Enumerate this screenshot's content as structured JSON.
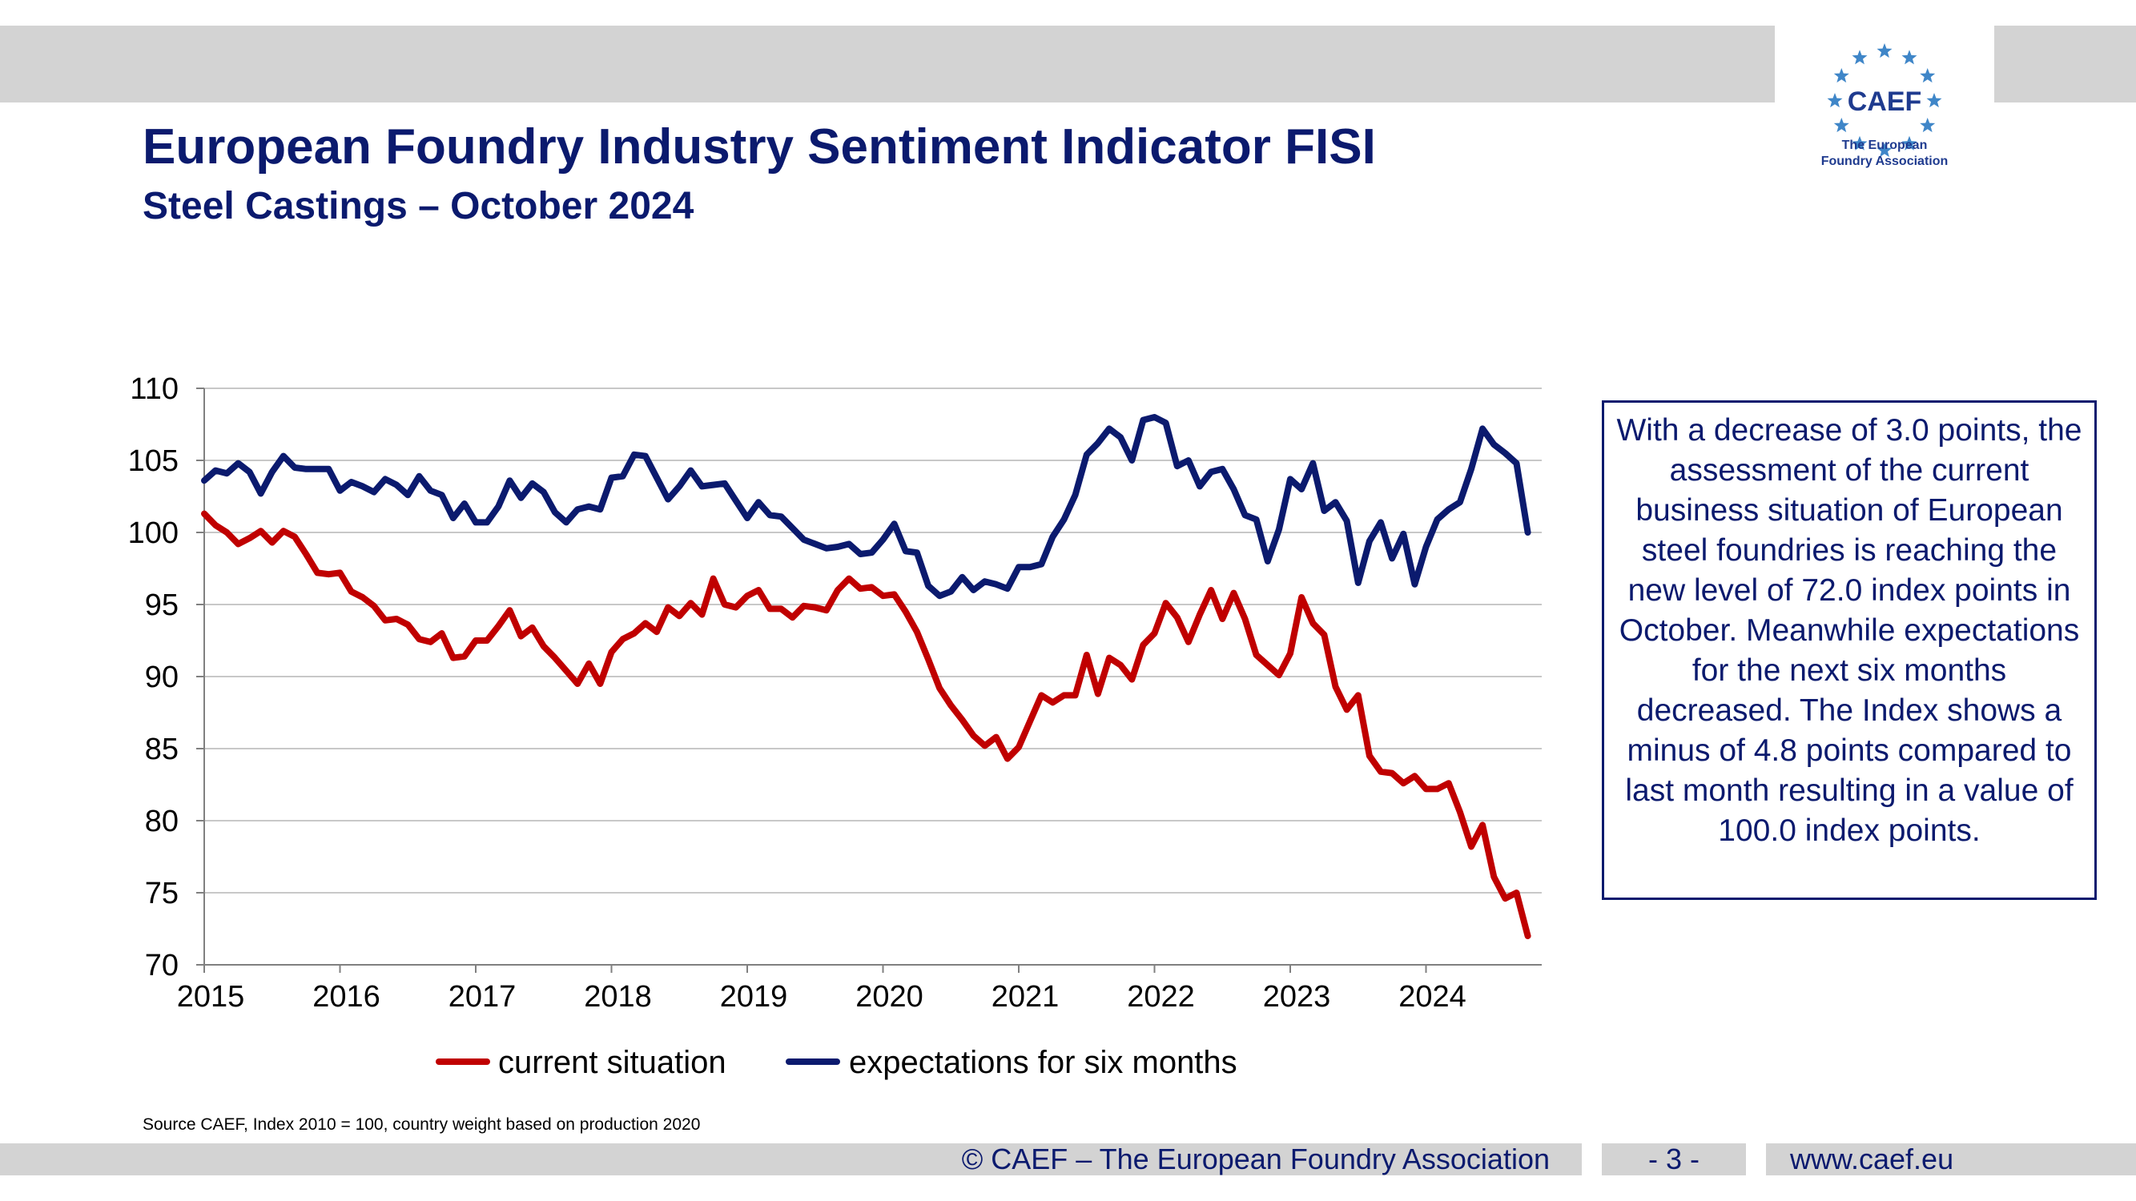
{
  "header": {
    "title": "European Foundry Industry Sentiment Indicator FISI",
    "subtitle": "Steel Castings – October 2024"
  },
  "logo": {
    "text": "CAEF",
    "sub_line1": "The European",
    "sub_line2": "Foundry Association",
    "color": "#1f3b8f",
    "star_color": "#3f86c8"
  },
  "note": "With a decrease of 3.0 points, the assessment of the current business situation of European steel foundries is reaching the new level of 72.0 index points in October. Meanwhile expectations for the next six months decreased. The Index shows a minus of 4.8 points compared to last month resulting in a value of 100.0 index points.",
  "source": "Source CAEF, Index 2010 = 100, country weight based on production 2020",
  "footer": {
    "copyright": "© CAEF – The European Foundry Association",
    "page": "- 3 -",
    "website": "www.caef.eu"
  },
  "chart_data": {
    "type": "line",
    "ylim": [
      70,
      110
    ],
    "yticks": [
      110,
      105,
      100,
      95,
      90,
      85,
      80,
      75,
      70
    ],
    "xticks": [
      "2015",
      "2016",
      "2017",
      "2018",
      "2019",
      "2020",
      "2021",
      "2022",
      "2023",
      "2024"
    ],
    "x_start": "2015-01",
    "x_frequency": "monthly",
    "grid": true,
    "legend_position": "bottom",
    "series": [
      {
        "name": "current situation",
        "color": "#c00000",
        "values": [
          101.3,
          100.5,
          100.0,
          99.2,
          99.6,
          100.1,
          99.3,
          100.1,
          99.7,
          98.5,
          97.2,
          97.1,
          97.2,
          95.9,
          95.5,
          94.9,
          93.9,
          94.0,
          93.6,
          92.6,
          92.4,
          93.0,
          91.3,
          91.4,
          92.5,
          92.5,
          93.5,
          94.6,
          92.8,
          93.4,
          92.1,
          91.3,
          90.4,
          89.5,
          90.9,
          89.5,
          91.7,
          92.6,
          93.0,
          93.7,
          93.1,
          94.8,
          94.2,
          95.1,
          94.3,
          96.8,
          95.0,
          94.8,
          95.6,
          96.0,
          94.7,
          94.7,
          94.1,
          94.9,
          94.8,
          94.6,
          96.0,
          96.8,
          96.1,
          96.2,
          95.6,
          95.7,
          94.5,
          93.1,
          91.2,
          89.2,
          88.0,
          87.0,
          85.9,
          85.2,
          85.8,
          84.3,
          85.1,
          86.9,
          88.7,
          88.2,
          88.7,
          88.7,
          91.5,
          88.8,
          91.3,
          90.8,
          89.8,
          92.2,
          93.0,
          95.1,
          94.1,
          92.4,
          94.3,
          96.0,
          94.0,
          95.8,
          94.0,
          91.5,
          90.8,
          90.1,
          91.6,
          95.5,
          93.7,
          92.9,
          89.3,
          87.7,
          88.7,
          84.5,
          83.4,
          83.3,
          82.6,
          83.1,
          82.2,
          82.2,
          82.6,
          80.6,
          78.2,
          79.7,
          76.1,
          74.6,
          75.0,
          72.0
        ]
      },
      {
        "name": "expectations for six months",
        "color": "#0b1a6e",
        "values": [
          103.6,
          104.3,
          104.1,
          104.8,
          104.2,
          102.7,
          104.2,
          105.3,
          104.5,
          104.4,
          104.4,
          104.4,
          102.9,
          103.5,
          103.2,
          102.8,
          103.7,
          103.3,
          102.6,
          103.9,
          102.9,
          102.6,
          101.0,
          102.0,
          100.7,
          100.7,
          101.8,
          103.6,
          102.4,
          103.4,
          102.8,
          101.4,
          100.7,
          101.6,
          101.8,
          101.6,
          103.8,
          103.9,
          105.4,
          105.3,
          103.8,
          102.3,
          103.2,
          104.3,
          103.2,
          103.3,
          103.4,
          102.2,
          101.0,
          102.1,
          101.2,
          101.1,
          100.3,
          99.5,
          99.2,
          98.9,
          99.0,
          99.2,
          98.5,
          98.6,
          99.5,
          100.6,
          98.7,
          98.6,
          96.3,
          95.6,
          95.9,
          96.9,
          96.0,
          96.6,
          96.4,
          96.1,
          97.6,
          97.6,
          97.8,
          99.7,
          100.9,
          102.6,
          105.4,
          106.2,
          107.2,
          106.6,
          105.0,
          107.8,
          108.0,
          107.6,
          104.6,
          105.0,
          103.2,
          104.2,
          104.4,
          103.0,
          101.2,
          100.9,
          98.0,
          100.2,
          103.7,
          103.0,
          104.8,
          101.5,
          102.1,
          100.8,
          96.5,
          99.4,
          100.7,
          98.2,
          99.9,
          96.4,
          99.0,
          100.9,
          101.6,
          102.1,
          104.4,
          107.2,
          106.1,
          105.5,
          104.8,
          100.0
        ]
      }
    ]
  }
}
